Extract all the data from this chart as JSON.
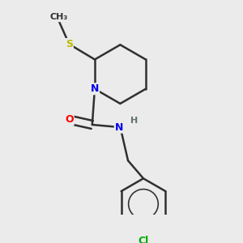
{
  "background_color": "#ebebeb",
  "atom_colors": {
    "N": "#0000ee",
    "O": "#ff0000",
    "S": "#bbbb00",
    "Cl": "#00aa00",
    "C": "#303030",
    "H": "#607070"
  },
  "bond_color": "#303030",
  "bond_width": 1.8,
  "figsize": [
    3.0,
    3.0
  ],
  "dpi": 100
}
